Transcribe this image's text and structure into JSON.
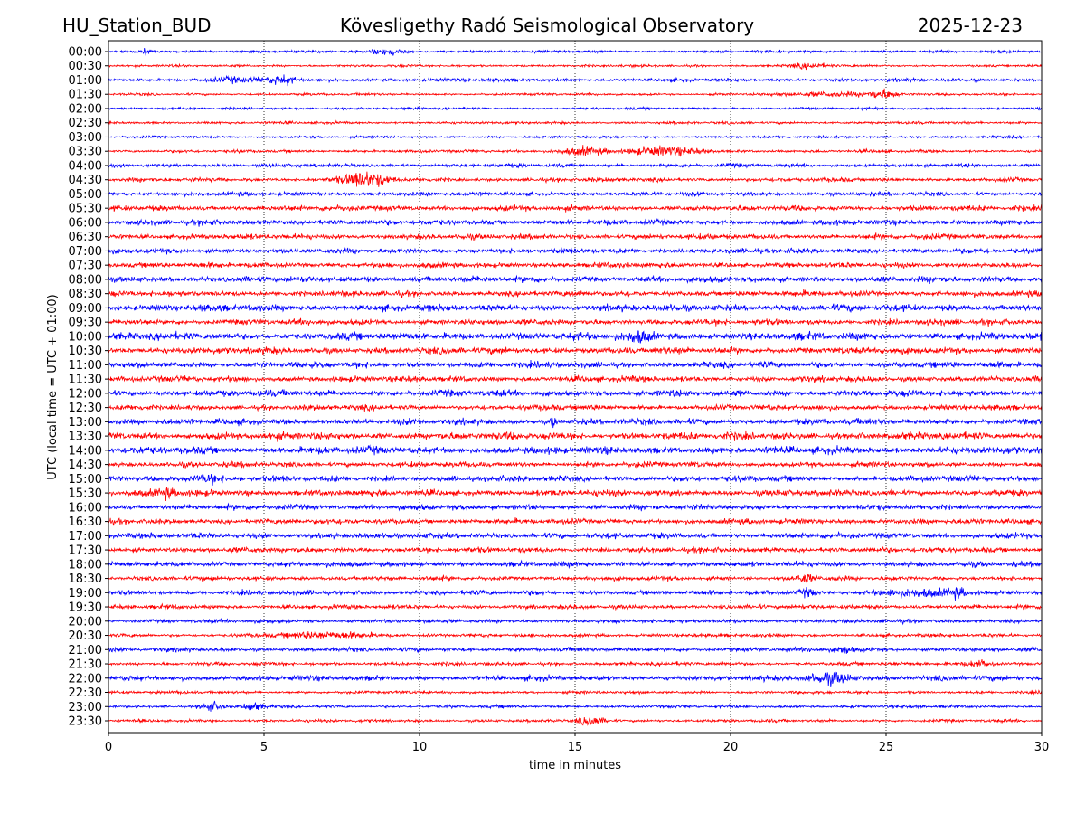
{
  "chart_data": {
    "type": "line",
    "title_left": "HU_Station_BUD",
    "title_center": "Kövesligethy Radó Seismological Observatory",
    "title_right": "2025-12-23",
    "xlabel": "time in minutes",
    "ylabel": "UTC (local time = UTC + 01:00)",
    "xlim": [
      0,
      30
    ],
    "xticks": [
      "0",
      "5",
      "10",
      "15",
      "20",
      "25",
      "30"
    ],
    "grid": "vertical dotted at each 5 minutes",
    "row_labels": [
      "00:00",
      "00:30",
      "01:00",
      "01:30",
      "02:00",
      "02:30",
      "03:00",
      "03:30",
      "04:00",
      "04:30",
      "05:00",
      "05:30",
      "06:00",
      "06:30",
      "07:00",
      "07:30",
      "08:00",
      "08:30",
      "09:00",
      "09:30",
      "10:00",
      "10:30",
      "11:00",
      "11:30",
      "12:00",
      "12:30",
      "13:00",
      "13:30",
      "14:00",
      "14:30",
      "15:00",
      "15:30",
      "16:00",
      "16:30",
      "17:00",
      "17:30",
      "18:00",
      "18:30",
      "19:00",
      "19:30",
      "20:00",
      "20:30",
      "21:00",
      "21:30",
      "22:00",
      "22:30",
      "23:00",
      "23:30"
    ],
    "series_colors": [
      "#0000ff",
      "#ff0000"
    ],
    "noise_level": [
      1.0,
      0.9,
      1.3,
      0.9,
      0.9,
      1.0,
      0.9,
      1.1,
      1.4,
      1.5,
      1.5,
      2.0,
      2.0,
      2.0,
      1.9,
      2.0,
      2.3,
      2.1,
      2.6,
      2.2,
      2.8,
      2.5,
      2.3,
      2.2,
      2.4,
      2.0,
      2.3,
      2.8,
      2.8,
      2.0,
      2.2,
      2.4,
      2.1,
      2.0,
      2.2,
      2.0,
      2.0,
      1.6,
      1.8,
      1.6,
      1.4,
      1.3,
      1.6,
      1.3,
      2.0,
      1.1,
      1.1,
      1.1
    ],
    "events": [
      {
        "row": 0,
        "minute": 9.0,
        "amplitude": 2.0,
        "duration": 1.0
      },
      {
        "row": 0,
        "minute": 1.2,
        "amplitude": 1.8,
        "duration": 0.2
      },
      {
        "row": 1,
        "minute": 22.5,
        "amplitude": 1.3,
        "duration": 1.5
      },
      {
        "row": 2,
        "minute": 4.2,
        "amplitude": 1.6,
        "duration": 1.5
      },
      {
        "row": 2,
        "minute": 5.6,
        "amplitude": 3.0,
        "duration": 0.8
      },
      {
        "row": 3,
        "minute": 23.5,
        "amplitude": 1.3,
        "duration": 3.5
      },
      {
        "row": 3,
        "minute": 24.9,
        "amplitude": 3.0,
        "duration": 0.8
      },
      {
        "row": 7,
        "minute": 15.3,
        "amplitude": 2.8,
        "duration": 1.5
      },
      {
        "row": 7,
        "minute": 17.9,
        "amplitude": 3.2,
        "duration": 2.0
      },
      {
        "row": 9,
        "minute": 8.2,
        "amplitude": 5.0,
        "duration": 1.5
      },
      {
        "row": 20,
        "minute": 17.1,
        "amplitude": 3.0,
        "duration": 0.8
      },
      {
        "row": 26,
        "minute": 14.3,
        "amplitude": 5.0,
        "duration": 0.15
      },
      {
        "row": 30,
        "minute": 3.2,
        "amplitude": 2.5,
        "duration": 1.0
      },
      {
        "row": 31,
        "minute": 1.9,
        "amplitude": 3.0,
        "duration": 0.5
      },
      {
        "row": 37,
        "minute": 22.4,
        "amplitude": 3.0,
        "duration": 0.6
      },
      {
        "row": 38,
        "minute": 22.5,
        "amplitude": 2.8,
        "duration": 0.5
      },
      {
        "row": 38,
        "minute": 25.8,
        "amplitude": 2.2,
        "duration": 2.0
      },
      {
        "row": 38,
        "minute": 27.3,
        "amplitude": 3.0,
        "duration": 0.6
      },
      {
        "row": 41,
        "minute": 7.0,
        "amplitude": 2.0,
        "duration": 3.0
      },
      {
        "row": 42,
        "minute": 23.6,
        "amplitude": 2.2,
        "duration": 0.6
      },
      {
        "row": 43,
        "minute": 28.0,
        "amplitude": 2.2,
        "duration": 0.8
      },
      {
        "row": 44,
        "minute": 23.2,
        "amplitude": 3.5,
        "duration": 1.5
      },
      {
        "row": 46,
        "minute": 3.3,
        "amplitude": 3.0,
        "duration": 0.6
      },
      {
        "row": 46,
        "minute": 4.6,
        "amplitude": 3.0,
        "duration": 0.6
      },
      {
        "row": 47,
        "minute": 15.5,
        "amplitude": 3.0,
        "duration": 0.8
      }
    ]
  }
}
